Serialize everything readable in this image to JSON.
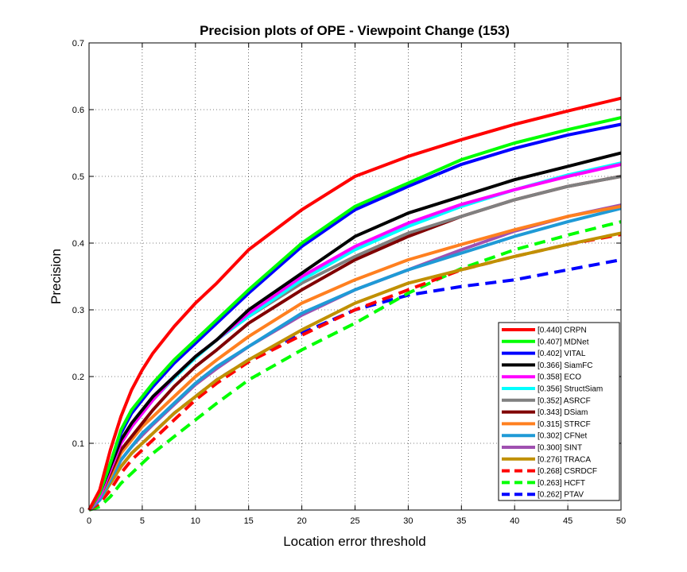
{
  "chart_data": {
    "type": "line",
    "title": "Precision plots of OPE - Viewpoint Change (153)",
    "xlabel": "Location error threshold",
    "ylabel": "Precision",
    "xlim": [
      0,
      50
    ],
    "ylim": [
      0,
      0.7
    ],
    "xticks": [
      0,
      5,
      10,
      15,
      20,
      25,
      30,
      35,
      40,
      45,
      50
    ],
    "yticks": [
      0,
      0.1,
      0.2,
      0.3,
      0.4,
      0.5,
      0.6,
      0.7
    ],
    "xtick_labels": [
      "0",
      "5",
      "10",
      "15",
      "20",
      "25",
      "30",
      "35",
      "40",
      "45",
      "50"
    ],
    "ytick_labels": [
      "0",
      "0.1",
      "0.2",
      "0.3",
      "0.4",
      "0.5",
      "0.6",
      "0.7"
    ],
    "grid": true,
    "legend_position": "bottom-right",
    "x": [
      0,
      1,
      2,
      3,
      4,
      5,
      6,
      8,
      10,
      12,
      15,
      20,
      25,
      30,
      35,
      40,
      45,
      50
    ],
    "series": [
      {
        "name": "[0.440] CRPN",
        "color": "#ff0000",
        "dash": false,
        "values": [
          0,
          0.03,
          0.09,
          0.14,
          0.18,
          0.21,
          0.235,
          0.275,
          0.31,
          0.34,
          0.39,
          0.45,
          0.5,
          0.53,
          0.555,
          0.578,
          0.598,
          0.617
        ]
      },
      {
        "name": "[0.407] MDNet",
        "color": "#00ff00",
        "dash": false,
        "values": [
          0,
          0.025,
          0.07,
          0.12,
          0.15,
          0.17,
          0.19,
          0.225,
          0.255,
          0.285,
          0.33,
          0.4,
          0.455,
          0.49,
          0.525,
          0.55,
          0.57,
          0.588
        ]
      },
      {
        "name": "[0.402] VITAL",
        "color": "#0000ff",
        "dash": false,
        "values": [
          0,
          0.025,
          0.07,
          0.115,
          0.145,
          0.165,
          0.185,
          0.22,
          0.25,
          0.28,
          0.325,
          0.395,
          0.45,
          0.485,
          0.518,
          0.542,
          0.562,
          0.578
        ]
      },
      {
        "name": "[0.366] SiamFC",
        "color": "#000000",
        "dash": false,
        "values": [
          0,
          0.025,
          0.065,
          0.105,
          0.13,
          0.15,
          0.17,
          0.2,
          0.23,
          0.255,
          0.3,
          0.355,
          0.41,
          0.445,
          0.47,
          0.495,
          0.515,
          0.535
        ]
      },
      {
        "name": "[0.358] ECO",
        "color": "#ff00ff",
        "dash": false,
        "values": [
          0,
          0.02,
          0.06,
          0.1,
          0.125,
          0.145,
          0.165,
          0.2,
          0.23,
          0.255,
          0.295,
          0.35,
          0.395,
          0.43,
          0.458,
          0.48,
          0.5,
          0.518
        ]
      },
      {
        "name": "[0.356] StructSiam",
        "color": "#00ffff",
        "dash": false,
        "values": [
          0,
          0.02,
          0.06,
          0.1,
          0.125,
          0.145,
          0.165,
          0.198,
          0.228,
          0.255,
          0.29,
          0.345,
          0.39,
          0.425,
          0.455,
          0.48,
          0.502,
          0.52
        ]
      },
      {
        "name": "[0.352] ASRCF",
        "color": "#808080",
        "dash": false,
        "values": [
          0,
          0.02,
          0.06,
          0.1,
          0.125,
          0.145,
          0.165,
          0.2,
          0.23,
          0.255,
          0.29,
          0.34,
          0.38,
          0.415,
          0.44,
          0.465,
          0.485,
          0.5
        ]
      },
      {
        "name": "[0.343] DSiam",
        "color": "#800000",
        "dash": false,
        "values": [
          0,
          0.02,
          0.055,
          0.09,
          0.11,
          0.13,
          0.15,
          0.185,
          0.215,
          0.24,
          0.28,
          0.33,
          0.375,
          0.41,
          0.44,
          0.465,
          0.485,
          0.5
        ]
      },
      {
        "name": "[0.315] STRCF",
        "color": "#ff8020",
        "dash": false,
        "values": [
          0,
          0.02,
          0.05,
          0.085,
          0.105,
          0.125,
          0.14,
          0.17,
          0.2,
          0.225,
          0.26,
          0.31,
          0.345,
          0.375,
          0.398,
          0.42,
          0.44,
          0.455
        ]
      },
      {
        "name": "[0.302] CFNet",
        "color": "#1f9ad6",
        "dash": false,
        "values": [
          0,
          0.015,
          0.045,
          0.075,
          0.095,
          0.115,
          0.13,
          0.16,
          0.19,
          0.215,
          0.245,
          0.295,
          0.33,
          0.36,
          0.385,
          0.41,
          0.432,
          0.452
        ]
      },
      {
        "name": "[0.300] SINT",
        "color": "#a050b0",
        "dash": false,
        "values": [
          0,
          0.015,
          0.045,
          0.075,
          0.095,
          0.112,
          0.128,
          0.158,
          0.188,
          0.212,
          0.245,
          0.292,
          0.33,
          0.36,
          0.39,
          0.418,
          0.44,
          0.457
        ]
      },
      {
        "name": "[0.276] TRACA",
        "color": "#c09000",
        "dash": false,
        "values": [
          0,
          0.015,
          0.04,
          0.065,
          0.085,
          0.1,
          0.115,
          0.145,
          0.17,
          0.195,
          0.225,
          0.27,
          0.31,
          0.34,
          0.36,
          0.38,
          0.398,
          0.415
        ]
      },
      {
        "name": "[0.268] CSRDCF",
        "color": "#ff0000",
        "dash": true,
        "values": [
          0,
          0.01,
          0.03,
          0.055,
          0.075,
          0.09,
          0.105,
          0.135,
          0.165,
          0.19,
          0.222,
          0.262,
          0.3,
          0.33,
          0.36,
          0.38,
          0.398,
          0.413
        ]
      },
      {
        "name": "[0.263] HCFT",
        "color": "#00ff00",
        "dash": true,
        "values": [
          0,
          0.005,
          0.02,
          0.04,
          0.055,
          0.07,
          0.085,
          0.11,
          0.135,
          0.16,
          0.195,
          0.24,
          0.28,
          0.325,
          0.362,
          0.39,
          0.412,
          0.432
        ]
      },
      {
        "name": "[0.262] PTAV",
        "color": "#0000ff",
        "dash": true,
        "values": [
          0,
          0.015,
          0.04,
          0.065,
          0.085,
          0.1,
          0.115,
          0.145,
          0.17,
          0.195,
          0.225,
          0.265,
          0.3,
          0.322,
          0.335,
          0.345,
          0.36,
          0.375
        ]
      }
    ]
  }
}
